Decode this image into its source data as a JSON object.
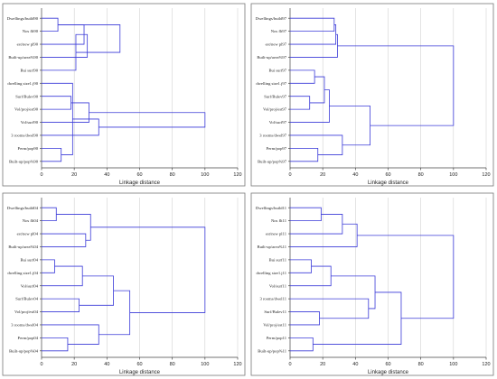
{
  "chart_data": [
    {
      "type": "dendrogram",
      "xlabel": "Linkage distance",
      "xlim": [
        0,
        120
      ],
      "xticks": [
        0,
        20,
        40,
        60,
        80,
        100,
        120
      ],
      "grid": true,
      "leaves": [
        "Dwellings/build90",
        "Nos flt90",
        "est/new pl90",
        "Built-up/area%90",
        "Bui surf90",
        "dwelling size1.j90",
        "Surf/Bulev90",
        "Vol/proj/est90",
        "Vol/surf90",
        "3 rooms/dwel90",
        "Perm/pop90",
        "Built-up/pop%90"
      ],
      "merges": [
        {
          "a": 0,
          "b": 1,
          "d": 10
        },
        {
          "a": 10,
          "b": 11,
          "d": 12
        },
        {
          "a": 12,
          "b": 2,
          "d": 26
        },
        {
          "a": 6,
          "b": 7,
          "d": 18
        },
        {
          "a": 5,
          "b": 13,
          "d": 19
        },
        {
          "a": 4,
          "b": 14,
          "d": 21
        },
        {
          "a": 15,
          "b": 8,
          "d": 29
        },
        {
          "a": 16,
          "b": 9,
          "d": 35
        },
        {
          "a": 17,
          "b": 12,
          "d": 48
        },
        {
          "a": 14,
          "b": 3,
          "d": 28
        },
        {
          "a": 19,
          "b": 18,
          "d": 100
        }
      ]
    },
    {
      "type": "dendrogram",
      "xlabel": "Linkage distance",
      "xlim": [
        0,
        120
      ],
      "xticks": [
        0,
        20,
        40,
        60,
        80,
        100,
        120
      ],
      "grid": true,
      "leaves": [
        "Dwellings/build97",
        "Nos flt97",
        "est/new pl97",
        "Built-up/area%97",
        "Bui surf97",
        "dwelling size1.j97",
        "Surf/Bulev97",
        "Vol/proj/est97",
        "Vol/surf97",
        "3 rooms/dwel97",
        "Perm/pop97",
        "Built-up/pop%97"
      ],
      "merges": [
        {
          "a": 0,
          "b": 1,
          "d": 27
        },
        {
          "a": 12,
          "b": 2,
          "d": 28
        },
        {
          "a": 13,
          "b": 3,
          "d": 29
        },
        {
          "a": 4,
          "b": 5,
          "d": 15
        },
        {
          "a": 6,
          "b": 7,
          "d": 12
        },
        {
          "a": 15,
          "b": 16,
          "d": 21
        },
        {
          "a": 17,
          "b": 8,
          "d": 24
        },
        {
          "a": 10,
          "b": 11,
          "d": 17
        },
        {
          "a": 9,
          "b": 19,
          "d": 32
        },
        {
          "a": 18,
          "b": 20,
          "d": 49
        },
        {
          "a": 14,
          "b": 21,
          "d": 100
        }
      ]
    },
    {
      "type": "dendrogram",
      "xlabel": "Linkage distance",
      "xlim": [
        0,
        120
      ],
      "xticks": [
        0,
        20,
        40,
        60,
        80,
        100,
        120
      ],
      "grid": true,
      "leaves": [
        "Dwellings/build04",
        "Nos flt04",
        "est/new pl04",
        "Built-up/area%04",
        "Bui surf04",
        "dwelling size1.j04",
        "Vol/surf04",
        "Surf/Bulev04",
        "Vol/proj/est04",
        "3 rooms/dwel04",
        "Perm/pop04",
        "Built-up/pop%04"
      ],
      "merges": [
        {
          "a": 0,
          "b": 1,
          "d": 9
        },
        {
          "a": 2,
          "b": 3,
          "d": 27
        },
        {
          "a": 12,
          "b": 13,
          "d": 30
        },
        {
          "a": 4,
          "b": 5,
          "d": 8
        },
        {
          "a": 15,
          "b": 6,
          "d": 25
        },
        {
          "a": 7,
          "b": 8,
          "d": 23
        },
        {
          "a": 16,
          "b": 17,
          "d": 44
        },
        {
          "a": 10,
          "b": 11,
          "d": 16
        },
        {
          "a": 9,
          "b": 19,
          "d": 35
        },
        {
          "a": 18,
          "b": 20,
          "d": 54
        },
        {
          "a": 14,
          "b": 21,
          "d": 100
        }
      ]
    },
    {
      "type": "dendrogram",
      "xlabel": "Linkage distance",
      "xlim": [
        0,
        120
      ],
      "xticks": [
        0,
        20,
        40,
        60,
        80,
        100,
        120
      ],
      "grid": true,
      "leaves": [
        "Dwellings/build11",
        "Nos flt11",
        "est/new pl11",
        "Built-up/area%11",
        "Bui surf11",
        "dwelling size1.j11",
        "Vol/surf11",
        "3 rooms/dwel11",
        "Surf/Bulev11",
        "Vol/proj/est11",
        "Perm/pop11",
        "Built-up/pop%11"
      ],
      "merges": [
        {
          "a": 0,
          "b": 1,
          "d": 19
        },
        {
          "a": 12,
          "b": 2,
          "d": 32
        },
        {
          "a": 13,
          "b": 3,
          "d": 41
        },
        {
          "a": 4,
          "b": 5,
          "d": 13
        },
        {
          "a": 15,
          "b": 6,
          "d": 25
        },
        {
          "a": 8,
          "b": 9,
          "d": 18
        },
        {
          "a": 7,
          "b": 17,
          "d": 48
        },
        {
          "a": 16,
          "b": 18,
          "d": 52
        },
        {
          "a": 10,
          "b": 11,
          "d": 14
        },
        {
          "a": 19,
          "b": 20,
          "d": 68
        },
        {
          "a": 14,
          "b": 21,
          "d": 100
        }
      ]
    }
  ]
}
